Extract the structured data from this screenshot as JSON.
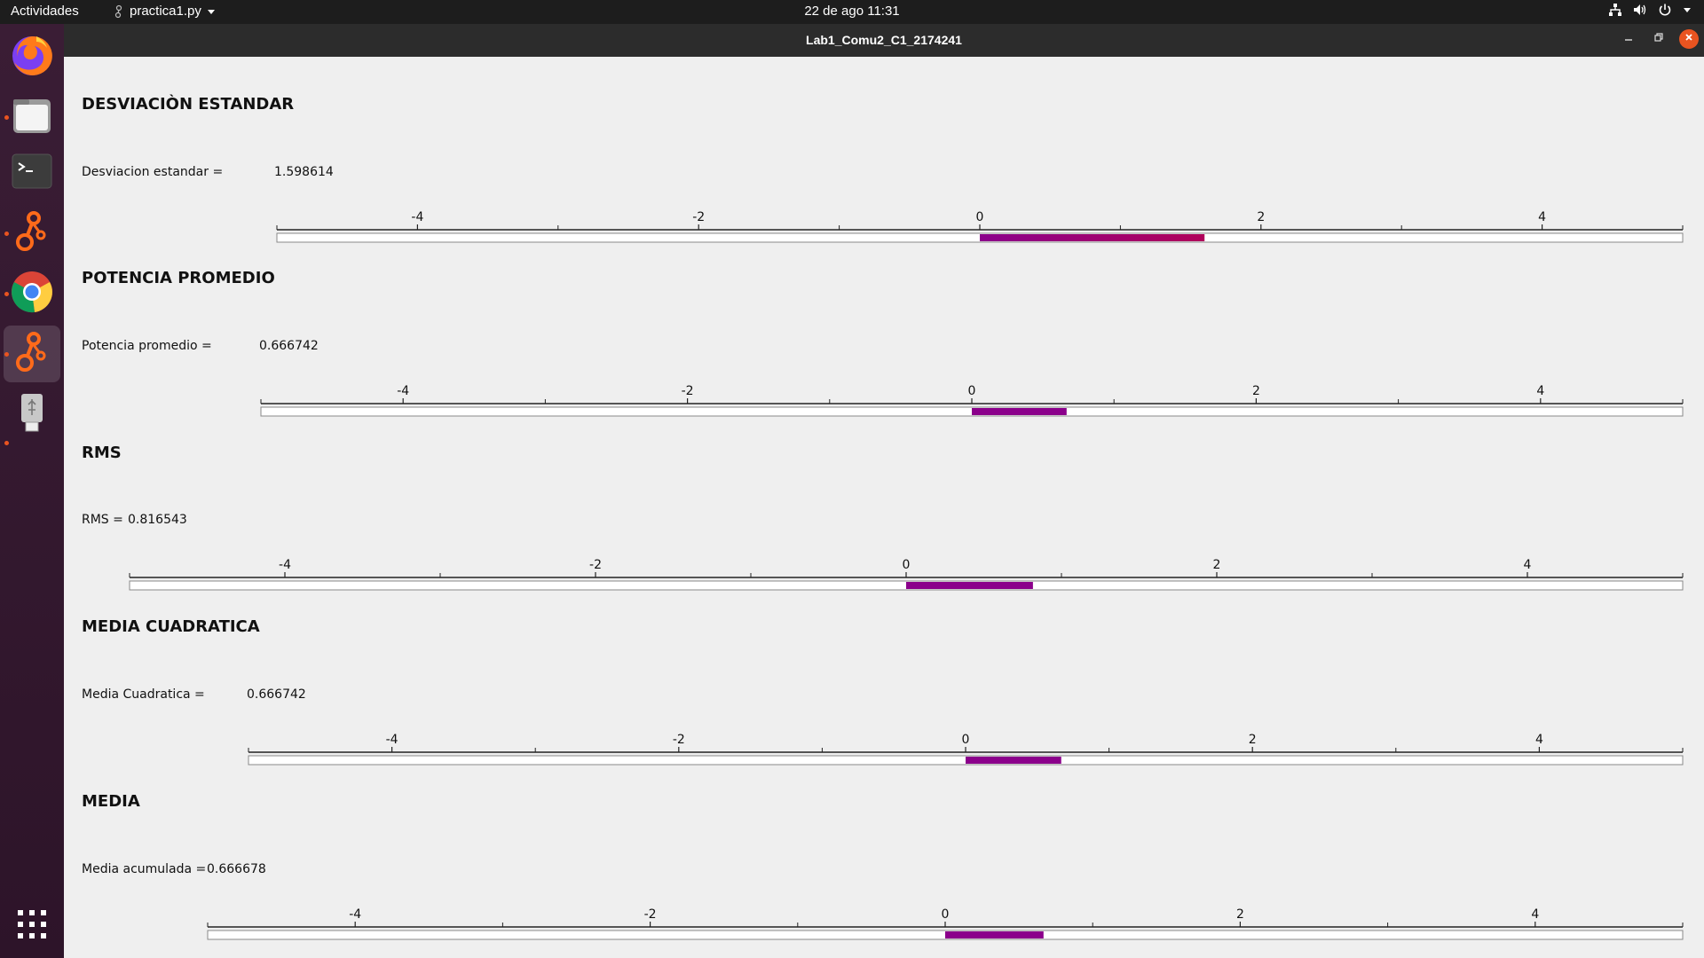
{
  "topbar": {
    "activities": "Actividades",
    "app_name": "practica1.py",
    "clock": "22 de ago  11:31"
  },
  "window": {
    "title": "Lab1_Comu2_C1_2174241"
  },
  "dock": {
    "items": [
      {
        "name": "firefox-icon"
      },
      {
        "name": "files-icon"
      },
      {
        "name": "terminal-icon"
      },
      {
        "name": "gnuradio-icon"
      },
      {
        "name": "chrome-icon"
      },
      {
        "name": "gnuradio-icon"
      },
      {
        "name": "usb-drive-icon"
      },
      {
        "name": "show-apps-icon"
      }
    ]
  },
  "colors": {
    "bar_fill": "#8b008b",
    "bar_fill_alt": "#b0005a",
    "accent": "#e95420"
  },
  "sections": [
    {
      "title": "DESVIACIÒN ESTANDAR",
      "label": "Desviacion estandar =",
      "value": "1.598614",
      "bar_value": 1.598614
    },
    {
      "title": "POTENCIA PROMEDIO",
      "label": "Potencia promedio =",
      "value": "0.666742",
      "bar_value": 0.666742
    },
    {
      "title": "RMS",
      "label": "RMS =",
      "value": "0.816543",
      "bar_value": 0.816543
    },
    {
      "title": "MEDIA CUADRATICA",
      "label": "Media Cuadratica =",
      "value": "0.666742",
      "bar_value": 0.666742
    },
    {
      "title": "MEDIA",
      "label": "Media acumulada =",
      "value": "0.666678",
      "bar_value": 0.666678
    }
  ],
  "scale": {
    "min": -5,
    "max": 5,
    "major_ticks": [
      -4,
      -2,
      0,
      2,
      4
    ],
    "tick_labels": [
      "-4",
      "-2",
      "0",
      "2",
      "4"
    ],
    "minor_ticks": [
      -5,
      -3,
      -1,
      1,
      3,
      5
    ]
  }
}
